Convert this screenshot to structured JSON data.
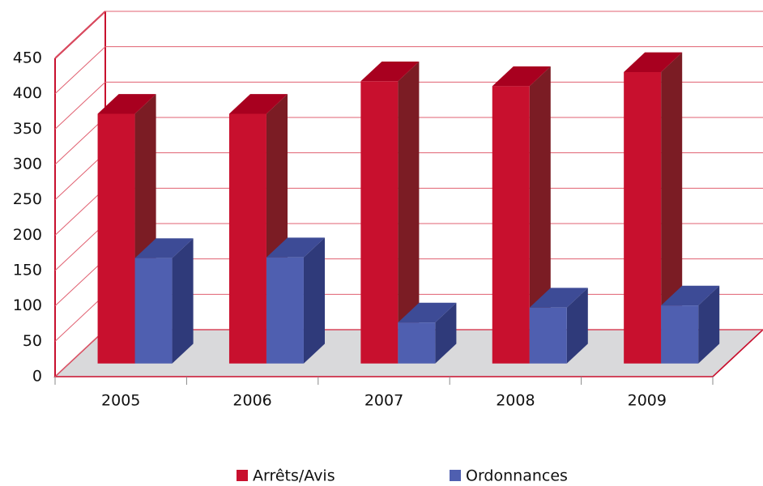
{
  "chart_data": {
    "type": "bar3d",
    "categories": [
      "2005",
      "2006",
      "2007",
      "2008",
      "2009"
    ],
    "series": [
      {
        "name": "Arrêts/Avis",
        "color": "#c8102e",
        "values": [
          353,
          353,
          399,
          392,
          412
        ]
      },
      {
        "name": "Ordonnances",
        "color": "#4f5fb0",
        "values": [
          149,
          150,
          58,
          79,
          82
        ]
      }
    ],
    "ylim": [
      0,
      450
    ],
    "yticks": [
      0,
      50,
      100,
      150,
      200,
      250,
      300,
      350,
      400,
      450
    ],
    "grid": true,
    "legend": "bottom"
  }
}
